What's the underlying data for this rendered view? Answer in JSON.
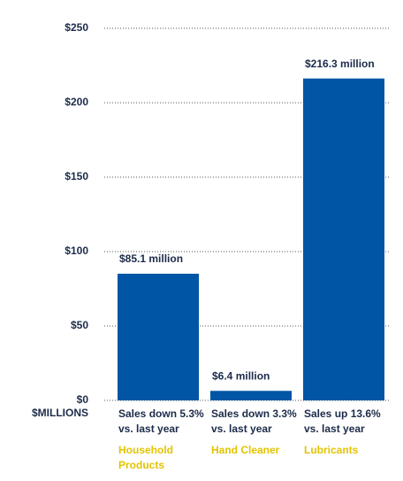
{
  "chart_data": {
    "type": "bar",
    "y_label": "$MILLIONS",
    "categories": [
      "Household Products",
      "Hand Cleaner",
      "Lubricants"
    ],
    "notes": [
      "Sales down 5.3% vs. last year",
      "Sales down 3.3% vs. last year",
      "Sales up 13.6% vs. last year"
    ],
    "values": [
      85.1,
      6.4,
      216.3
    ],
    "value_labels": [
      "$85.1 million",
      "$6.4 million",
      "$216.3 million"
    ],
    "color": "#0055a5",
    "ylim": [
      0,
      250
    ],
    "yticks": [
      {
        "value": 0,
        "label": "$0"
      },
      {
        "value": 50,
        "label": "$50"
      },
      {
        "value": 100,
        "label": "$100"
      },
      {
        "value": 150,
        "label": "$150"
      },
      {
        "value": 200,
        "label": "$200"
      },
      {
        "value": 250,
        "label": "$250"
      }
    ],
    "grid": true
  }
}
